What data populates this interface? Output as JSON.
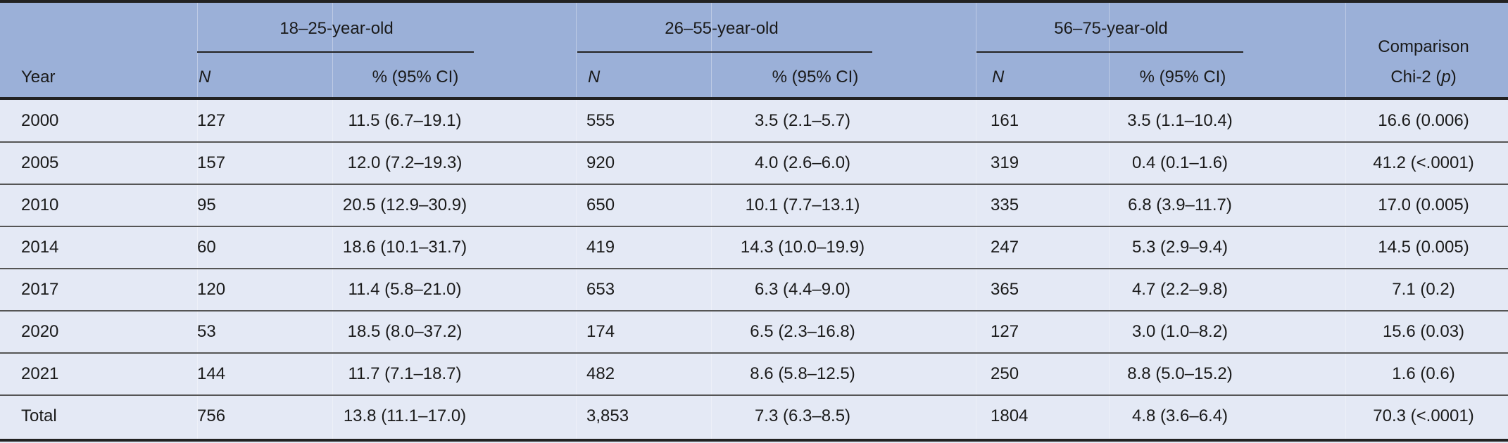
{
  "header": {
    "year": "Year",
    "groups": [
      "18–25-year-old",
      "26–55-year-old",
      "56–75-year-old"
    ],
    "n_label": "N",
    "pct_label": "% (95% CI)",
    "comparison_line1": "Comparison",
    "comparison_line2_prefix": "Chi-2 (",
    "comparison_line2_p": "p",
    "comparison_line2_suffix": ")"
  },
  "rows": [
    {
      "year": "2000",
      "n1": "127",
      "p1": "11.5 (6.7–19.1)",
      "n2": "555",
      "p2": "3.5 (2.1–5.7)",
      "n3": "161",
      "p3": "3.5 (1.1–10.4)",
      "chi": "16.6 (0.006)"
    },
    {
      "year": "2005",
      "n1": "157",
      "p1": "12.0 (7.2–19.3)",
      "n2": "920",
      "p2": "4.0 (2.6–6.0)",
      "n3": "319",
      "p3": "0.4 (0.1–1.6)",
      "chi": "41.2 (<.0001)"
    },
    {
      "year": "2010",
      "n1": "95",
      "p1": "20.5 (12.9–30.9)",
      "n2": "650",
      "p2": "10.1 (7.7–13.1)",
      "n3": "335",
      "p3": "6.8 (3.9–11.7)",
      "chi": "17.0 (0.005)"
    },
    {
      "year": "2014",
      "n1": "60",
      "p1": "18.6 (10.1–31.7)",
      "n2": "419",
      "p2": "14.3 (10.0–19.9)",
      "n3": "247",
      "p3": "5.3 (2.9–9.4)",
      "chi": "14.5 (0.005)"
    },
    {
      "year": "2017",
      "n1": "120",
      "p1": "11.4 (5.8–21.0)",
      "n2": "653",
      "p2": "6.3 (4.4–9.0)",
      "n3": "365",
      "p3": "4.7 (2.2–9.8)",
      "chi": "7.1 (0.2)"
    },
    {
      "year": "2020",
      "n1": "53",
      "p1": "18.5 (8.0–37.2)",
      "n2": "174",
      "p2": "6.5 (2.3–16.8)",
      "n3": "127",
      "p3": "3.0 (1.0–8.2)",
      "chi": "15.6 (0.03)"
    },
    {
      "year": "2021",
      "n1": "144",
      "p1": "11.7 (7.1–18.7)",
      "n2": "482",
      "p2": "8.6 (5.8–12.5)",
      "n3": "250",
      "p3": "8.8 (5.0–15.2)",
      "chi": "1.6 (0.6)"
    },
    {
      "year": "Total",
      "n1": "756",
      "p1": "13.8 (11.1–17.0)",
      "n2": "3,853",
      "p2": "7.3 (6.3–8.5)",
      "n3": "1804",
      "p3": "4.8 (3.6–6.4)",
      "chi": "70.3 (<.0001)"
    }
  ],
  "colors": {
    "header_bg": "#9bb0d8",
    "body_bg": "#e4e9f5",
    "rule": "#222222"
  }
}
